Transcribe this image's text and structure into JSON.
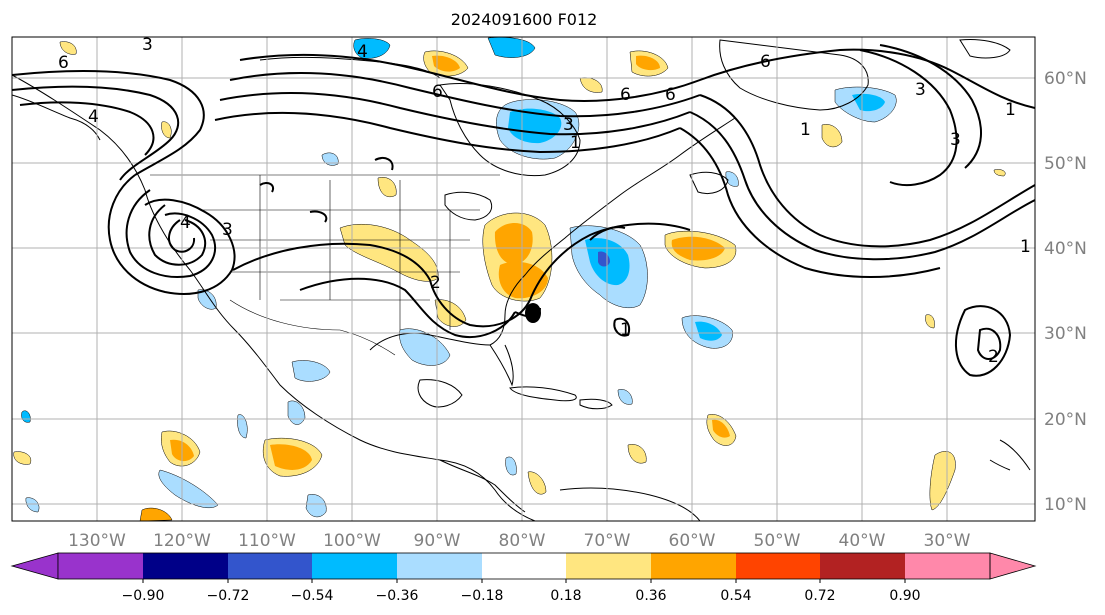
{
  "title": "2024091600 F012",
  "map": {
    "lon_labels": [
      "130°W",
      "120°W",
      "110°W",
      "100°W",
      "90°W",
      "80°W",
      "70°W",
      "60°W",
      "50°W",
      "40°W",
      "30°W"
    ],
    "lat_labels": [
      "60°N",
      "50°N",
      "40°N",
      "30°N",
      "20°N",
      "10°N"
    ],
    "contour_labels": [
      "3",
      "4",
      "6",
      "6",
      "3",
      "1",
      "6",
      "3",
      "4",
      "6",
      "3",
      "1",
      "6",
      "1",
      "3",
      "1",
      "4",
      "2",
      "1",
      "2"
    ],
    "colors": {
      "coast": "#000000",
      "grid": "#b0b0b0",
      "contour": "#000000",
      "tick_label": "#808080"
    }
  },
  "colorbar": {
    "tick_labels": [
      "−0.90",
      "−0.72",
      "−0.54",
      "−0.36",
      "−0.18",
      "0.18",
      "0.36",
      "0.54",
      "0.72",
      "0.90"
    ],
    "colors": [
      "#9933cc",
      "#000088",
      "#3355cc",
      "#00bbff",
      "#aaddff",
      "#ffffff",
      "#ffe680",
      "#ffa500",
      "#ff4400",
      "#b22222",
      "#ff88aa"
    ]
  }
}
